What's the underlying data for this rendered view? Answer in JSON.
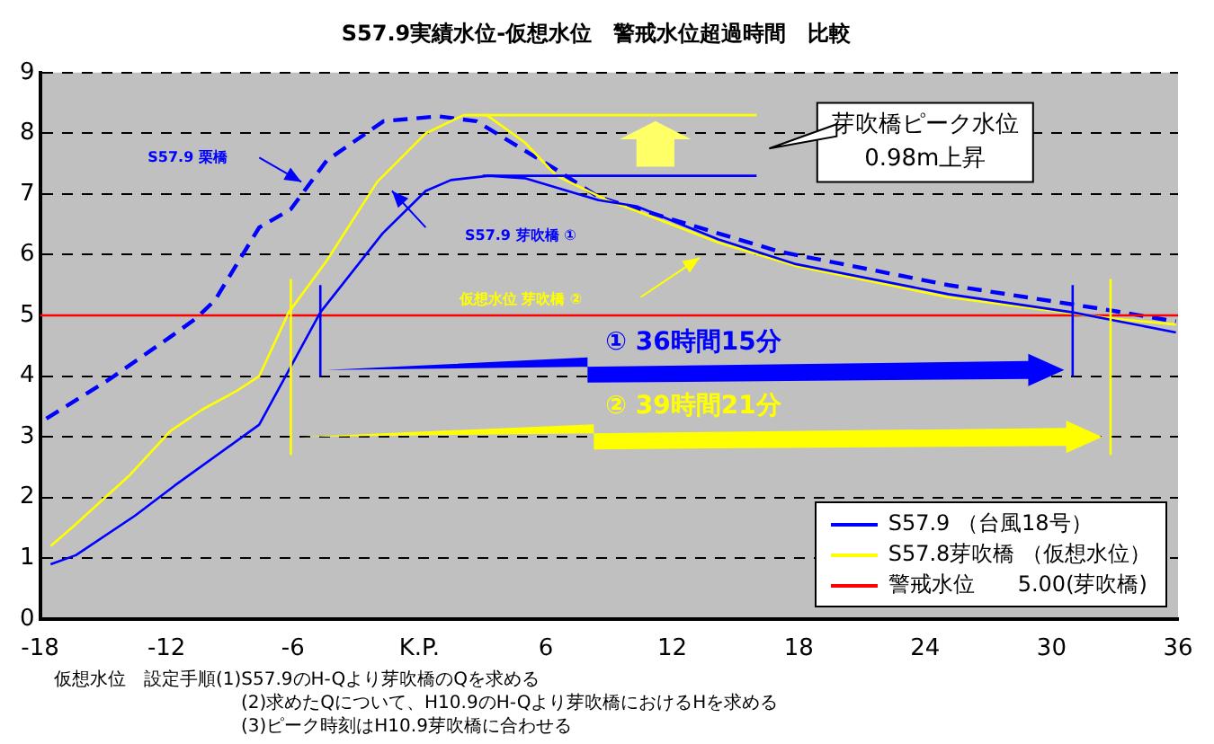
{
  "chart_data": {
    "type": "line",
    "title": "S57.9実績水位-仮想水位　警戒水位超過時間　比較",
    "xlim": [
      -18,
      36
    ],
    "xticks": [
      -18,
      -12,
      -6,
      {
        "value": 0,
        "label": "K.P."
      },
      6,
      12,
      18,
      24,
      30,
      36
    ],
    "ylim": [
      0,
      9
    ],
    "yticks": [
      0,
      1,
      2,
      3,
      4,
      5,
      6,
      7,
      8,
      9
    ],
    "grid": "y",
    "legend": "bottom right",
    "marker": "none",
    "series": [
      {
        "name": "S57.9 （台風18号）",
        "color": "#0000ff",
        "line_style": "solid",
        "x": [
          -17.5,
          -16.3,
          -13.5,
          -11.6,
          -7.6,
          -4.7,
          -1.75,
          0.3,
          1.5,
          3.3,
          5,
          8.5,
          10.3,
          14.2,
          17.8,
          25.1,
          31,
          35.9
        ],
        "values": [
          0.9,
          1.05,
          1.7,
          2.2,
          3.2,
          5.05,
          6.35,
          7.05,
          7.23,
          7.3,
          7.26,
          6.9,
          6.8,
          6.25,
          5.85,
          5.35,
          5.05,
          4.72
        ]
      },
      {
        "name": "S57.8芽吹橋 （仮想水位）",
        "color": "#ffff00",
        "line_style": "solid",
        "x": [
          -17.5,
          -16.5,
          -13.8,
          -11.8,
          -10.3,
          -8.7,
          -7.6,
          -6.2,
          -4.4,
          -2,
          0.3,
          2.1,
          3.2,
          5,
          6.5,
          8.9,
          10.3,
          14.2,
          17.8,
          25.1,
          32.8,
          35.9
        ],
        "values": [
          1.2,
          1.5,
          2.35,
          3.1,
          3.45,
          3.75,
          4.0,
          5.05,
          5.9,
          7.2,
          8.0,
          8.3,
          8.3,
          7.85,
          7.3,
          6.9,
          6.72,
          6.2,
          5.82,
          5.3,
          4.95,
          4.85
        ]
      },
      {
        "name": "警戒水位　　5.00(芽吹橋)",
        "color": "#ff0000",
        "line_style": "solid",
        "x": [
          -18,
          36
        ],
        "values": [
          5,
          5
        ]
      },
      {
        "color": "#0000ff",
        "line_style": "dashed",
        "x": [
          -17.7,
          -14.7,
          -11.8,
          -10.6,
          -9.7,
          -7.6,
          -6.1,
          -4.4,
          -1.7,
          0.9,
          2.7,
          6.5,
          8.5,
          14.2,
          17.1,
          25.1,
          32.5,
          35.9
        ],
        "values": [
          3.3,
          3.95,
          4.65,
          4.95,
          5.25,
          6.45,
          6.75,
          7.55,
          8.2,
          8.28,
          8.2,
          7.4,
          6.95,
          6.35,
          6.05,
          5.5,
          5.1,
          4.9
        ]
      }
    ],
    "annotations": [
      "S57.9 栗橋",
      "S57.9 芽吹橋 ①",
      "仮想水位 芽吹橋 ②",
      "① 36時間15分",
      "② 39時間21分",
      "芽吹橋ピーク水位\n0.98m上昇",
      "仮想水位　設定手順(1)S57.9のH-Qより芽吹橋のQを求める",
      "(2)求めたQについて、H10.9のH-Qより芽吹橋におけるHを求める",
      "(3)ピーク時刻はH10.9芽吹橋に合わせる"
    ]
  }
}
